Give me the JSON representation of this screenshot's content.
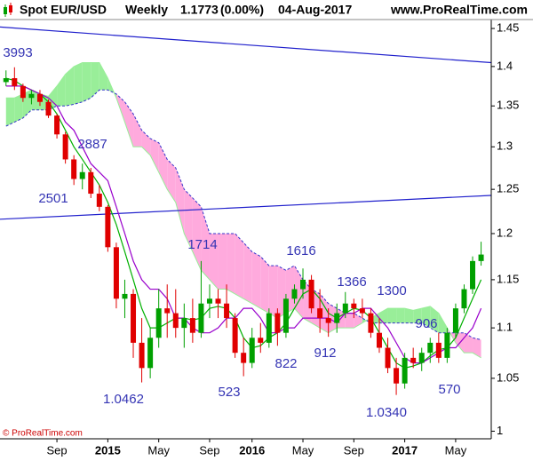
{
  "chart_data": {
    "type": "candlestick",
    "title": {
      "symbol": "Spot EUR/USD",
      "period": "Weekly",
      "price": "1.1773",
      "change": "(0.00%)",
      "date": "04-Aug-2017"
    },
    "site": "www.ProRealTime.com",
    "copyright": "© ProRealTime.com",
    "log_scale": true,
    "ylim": [
      0.993,
      1.462
    ],
    "yticks": [
      1,
      1.05,
      1.1,
      1.15,
      1.2,
      1.25,
      1.3,
      1.35,
      1.4,
      1.45
    ],
    "categories": [
      null,
      null,
      null,
      null,
      null,
      null,
      "Sep",
      null,
      null,
      null,
      null,
      null,
      "2015",
      null,
      null,
      null,
      null,
      null,
      "May",
      null,
      null,
      null,
      null,
      null,
      "Sep",
      null,
      null,
      null,
      null,
      "2016",
      null,
      null,
      null,
      null,
      null,
      "May",
      null,
      null,
      null,
      null,
      null,
      "Sep",
      null,
      null,
      null,
      null,
      null,
      "2017",
      null,
      null,
      null,
      null,
      null,
      "May",
      null,
      null,
      null
    ],
    "up_color": "#00a000",
    "down_color": "#e00000",
    "candles": [
      [
        1.38,
        1.395,
        1.375,
        1.385
      ],
      [
        1.385,
        1.399,
        1.37,
        1.375
      ],
      [
        1.375,
        1.378,
        1.355,
        1.36
      ],
      [
        1.36,
        1.37,
        1.352,
        1.365
      ],
      [
        1.365,
        1.37,
        1.35,
        1.355
      ],
      [
        1.355,
        1.358,
        1.335,
        1.338
      ],
      [
        1.338,
        1.34,
        1.31,
        1.315
      ],
      [
        1.315,
        1.318,
        1.28,
        1.285
      ],
      [
        1.285,
        1.29,
        1.255,
        1.262
      ],
      [
        1.262,
        1.28,
        1.25,
        1.27
      ],
      [
        1.27,
        1.275,
        1.24,
        1.245
      ],
      [
        1.245,
        1.255,
        1.225,
        1.23
      ],
      [
        1.23,
        1.232,
        1.18,
        1.185
      ],
      [
        1.185,
        1.19,
        1.12,
        1.13
      ],
      [
        1.13,
        1.15,
        1.11,
        1.135
      ],
      [
        1.135,
        1.14,
        1.07,
        1.085
      ],
      [
        1.085,
        1.11,
        1.046,
        1.06
      ],
      [
        1.06,
        1.1,
        1.05,
        1.09
      ],
      [
        1.09,
        1.14,
        1.08,
        1.12
      ],
      [
        1.12,
        1.145,
        1.09,
        1.115
      ],
      [
        1.115,
        1.14,
        1.09,
        1.1
      ],
      [
        1.1,
        1.125,
        1.08,
        1.11
      ],
      [
        1.11,
        1.13,
        1.085,
        1.095
      ],
      [
        1.095,
        1.17,
        1.09,
        1.125
      ],
      [
        1.125,
        1.145,
        1.11,
        1.13
      ],
      [
        1.13,
        1.14,
        1.11,
        1.125
      ],
      [
        1.125,
        1.145,
        1.1,
        1.11
      ],
      [
        1.11,
        1.115,
        1.07,
        1.075
      ],
      [
        1.075,
        1.09,
        1.052,
        1.065
      ],
      [
        1.065,
        1.1,
        1.06,
        1.09
      ],
      [
        1.09,
        1.105,
        1.075,
        1.085
      ],
      [
        1.085,
        1.12,
        1.08,
        1.115
      ],
      [
        1.115,
        1.12,
        1.082,
        1.095
      ],
      [
        1.095,
        1.135,
        1.09,
        1.13
      ],
      [
        1.13,
        1.145,
        1.125,
        1.14
      ],
      [
        1.14,
        1.162,
        1.13,
        1.15
      ],
      [
        1.15,
        1.155,
        1.115,
        1.12
      ],
      [
        1.12,
        1.14,
        1.095,
        1.11
      ],
      [
        1.11,
        1.12,
        1.091,
        1.105
      ],
      [
        1.105,
        1.125,
        1.095,
        1.115
      ],
      [
        1.115,
        1.137,
        1.11,
        1.125
      ],
      [
        1.125,
        1.13,
        1.11,
        1.12
      ],
      [
        1.12,
        1.13,
        1.11,
        1.115
      ],
      [
        1.115,
        1.12,
        1.09,
        1.095
      ],
      [
        1.095,
        1.11,
        1.075,
        1.08
      ],
      [
        1.08,
        1.09,
        1.055,
        1.06
      ],
      [
        1.06,
        1.07,
        1.034,
        1.045
      ],
      [
        1.045,
        1.075,
        1.04,
        1.07
      ],
      [
        1.07,
        1.08,
        1.06,
        1.065
      ],
      [
        1.065,
        1.08,
        1.057,
        1.075
      ],
      [
        1.075,
        1.09,
        1.065,
        1.085
      ],
      [
        1.085,
        1.095,
        1.065,
        1.07
      ],
      [
        1.07,
        1.1,
        1.065,
        1.095
      ],
      [
        1.095,
        1.125,
        1.09,
        1.12
      ],
      [
        1.12,
        1.145,
        1.115,
        1.14
      ],
      [
        1.14,
        1.175,
        1.135,
        1.17
      ],
      [
        1.17,
        1.191,
        1.165,
        1.177
      ]
    ],
    "series": [
      {
        "color": "#00b000",
        "values": [
          1.385,
          1.382,
          1.375,
          1.37,
          1.365,
          1.355,
          1.34,
          1.32,
          1.3,
          1.285,
          1.27,
          1.255,
          1.235,
          1.21,
          1.18,
          1.15,
          1.12,
          1.1,
          1.1,
          1.105,
          1.11,
          1.11,
          1.108,
          1.11,
          1.12,
          1.122,
          1.12,
          1.11,
          1.09,
          1.08,
          1.082,
          1.09,
          1.095,
          1.105,
          1.12,
          1.135,
          1.14,
          1.13,
          1.115,
          1.11,
          1.115,
          1.12,
          1.118,
          1.11,
          1.095,
          1.08,
          1.065,
          1.06,
          1.062,
          1.065,
          1.072,
          1.078,
          1.08,
          1.09,
          1.11,
          1.13,
          1.15
        ]
      },
      {
        "color": "#9900cc",
        "values": [
          1.375,
          1.375,
          1.375,
          1.37,
          1.365,
          1.36,
          1.35,
          1.33,
          1.32,
          1.3,
          1.28,
          1.27,
          1.26,
          1.23,
          1.2,
          1.17,
          1.15,
          1.14,
          1.14,
          1.13,
          1.11,
          1.11,
          1.1,
          1.095,
          1.095,
          1.1,
          1.11,
          1.11,
          1.12,
          1.12,
          1.11,
          1.095,
          1.095,
          1.1,
          1.1,
          1.11,
          1.11,
          1.11,
          1.11,
          1.105,
          1.115,
          1.115,
          1.12,
          1.12,
          1.11,
          1.1,
          1.085,
          1.07,
          1.065,
          1.065,
          1.07,
          1.075,
          1.08,
          1.08,
          1.09,
          1.1,
          1.12
        ]
      }
    ],
    "cloud": {
      "up_color": "#99ee99",
      "down_color": "#ffaadd",
      "edge_color": "#3333cc",
      "span_a": [
        1.36,
        1.36,
        1.365,
        1.37,
        1.365,
        1.362,
        1.375,
        1.39,
        1.4,
        1.405,
        1.405,
        1.405,
        1.385,
        1.36,
        1.33,
        1.3,
        1.3,
        1.29,
        1.27,
        1.25,
        1.235,
        1.2,
        1.18,
        1.16,
        1.15,
        1.14,
        1.14,
        1.135,
        1.13,
        1.125,
        1.12,
        1.115,
        1.11,
        1.115,
        1.12,
        1.11,
        1.105,
        1.1,
        1.095,
        1.1,
        1.1,
        1.1,
        1.105,
        1.11,
        1.115,
        1.12,
        1.12,
        1.12,
        1.118,
        1.12,
        1.122,
        1.115,
        1.1,
        1.085,
        1.075,
        1.075,
        1.07
      ],
      "span_b": [
        1.325,
        1.33,
        1.335,
        1.345,
        1.345,
        1.345,
        1.35,
        1.35,
        1.352,
        1.355,
        1.36,
        1.37,
        1.37,
        1.365,
        1.355,
        1.34,
        1.32,
        1.31,
        1.305,
        1.285,
        1.275,
        1.25,
        1.24,
        1.23,
        1.2,
        1.2,
        1.2,
        1.2,
        1.19,
        1.18,
        1.175,
        1.165,
        1.165,
        1.16,
        1.165,
        1.15,
        1.14,
        1.135,
        1.125,
        1.12,
        1.115,
        1.115,
        1.11,
        1.105,
        1.105,
        1.105,
        1.105,
        1.105,
        1.105,
        1.105,
        1.1,
        1.095,
        1.095,
        1.095,
        1.095,
        1.09,
        1.088
      ]
    },
    "trendlines": [
      {
        "color": "#2020cc",
        "values": [
          1.452,
          1.405
        ]
      },
      {
        "color": "#2020cc",
        "values": [
          1.216,
          1.243
        ]
      }
    ],
    "annotations": [
      "3993",
      "2887",
      "2501",
      "1714",
      "1616",
      "1366",
      "1300",
      "906",
      "1.0462",
      "523",
      "822",
      "912",
      "1.0340",
      "570"
    ]
  }
}
